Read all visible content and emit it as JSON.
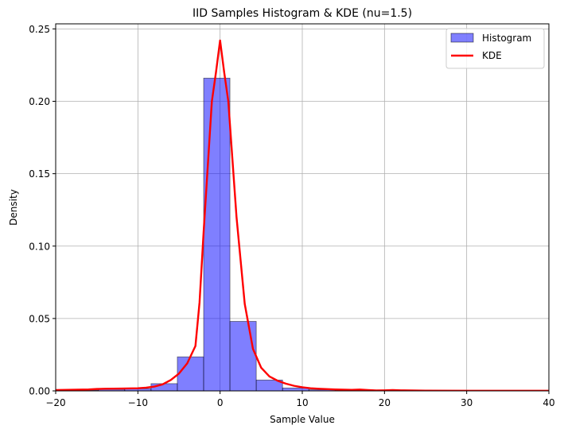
{
  "chart_data": {
    "type": "bar",
    "title": "IID Samples Histogram & KDE (nu=1.5)",
    "xlabel": "Sample Value",
    "ylabel": "Density",
    "xlim": [
      -20,
      40
    ],
    "ylim": [
      0,
      0.2535
    ],
    "xticks": [
      -20,
      -10,
      0,
      10,
      20,
      30,
      40
    ],
    "xtick_labels": [
      "−20",
      "−10",
      "0",
      "10",
      "20",
      "30",
      "40"
    ],
    "yticks": [
      0,
      0.05,
      0.1,
      0.15,
      0.2,
      0.25
    ],
    "ytick_labels": [
      "0.00",
      "0.05",
      "0.10",
      "0.15",
      "0.20",
      "0.25"
    ],
    "grid": true,
    "legend_position": "top-right",
    "histogram": {
      "name": "Histogram",
      "color": "#0000ff",
      "bin_edges": [
        -21.2,
        -18.0,
        -14.8,
        -11.6,
        -8.4,
        -5.2,
        -2.0,
        1.2,
        4.4,
        7.6,
        10.8,
        14.0,
        17.2,
        20.4,
        23.6,
        26.8,
        30.0,
        33.2,
        36.4,
        39.6,
        42.8
      ],
      "densities": [
        0.0005,
        0.0005,
        0.001,
        0.0015,
        0.005,
        0.0235,
        0.216,
        0.048,
        0.0075,
        0.002,
        0.0008,
        0.0005,
        0.0003,
        0.0002,
        0.0001,
        0.0001,
        0.0001,
        0.0001,
        0.0001,
        0.0001
      ]
    },
    "kde": {
      "name": "KDE",
      "color": "#ff0000",
      "x": [
        -20,
        -18,
        -16,
        -15,
        -14,
        -12,
        -10,
        -9,
        -8,
        -7,
        -6,
        -5,
        -4,
        -3,
        -2.5,
        -2,
        -1.5,
        -1,
        -0.5,
        0,
        0.5,
        1,
        1.5,
        2,
        2.5,
        3,
        4,
        5,
        6,
        7,
        8,
        9,
        10,
        11,
        12,
        14,
        16,
        17,
        18,
        19,
        20,
        21,
        22,
        25,
        30,
        35,
        40
      ],
      "y": [
        0.0006,
        0.0008,
        0.001,
        0.0013,
        0.0015,
        0.0016,
        0.0018,
        0.0022,
        0.003,
        0.0045,
        0.0075,
        0.012,
        0.019,
        0.031,
        0.061,
        0.11,
        0.155,
        0.2,
        0.22,
        0.242,
        0.22,
        0.2,
        0.16,
        0.12,
        0.09,
        0.06,
        0.029,
        0.016,
        0.01,
        0.007,
        0.005,
        0.0035,
        0.0025,
        0.0018,
        0.0015,
        0.001,
        0.0007,
        0.0009,
        0.0006,
        0.0003,
        0.0004,
        0.0006,
        0.0004,
        0.0002,
        0.0001,
        0.0001,
        0.0001
      ]
    },
    "legend": [
      "Histogram",
      "KDE"
    ]
  }
}
